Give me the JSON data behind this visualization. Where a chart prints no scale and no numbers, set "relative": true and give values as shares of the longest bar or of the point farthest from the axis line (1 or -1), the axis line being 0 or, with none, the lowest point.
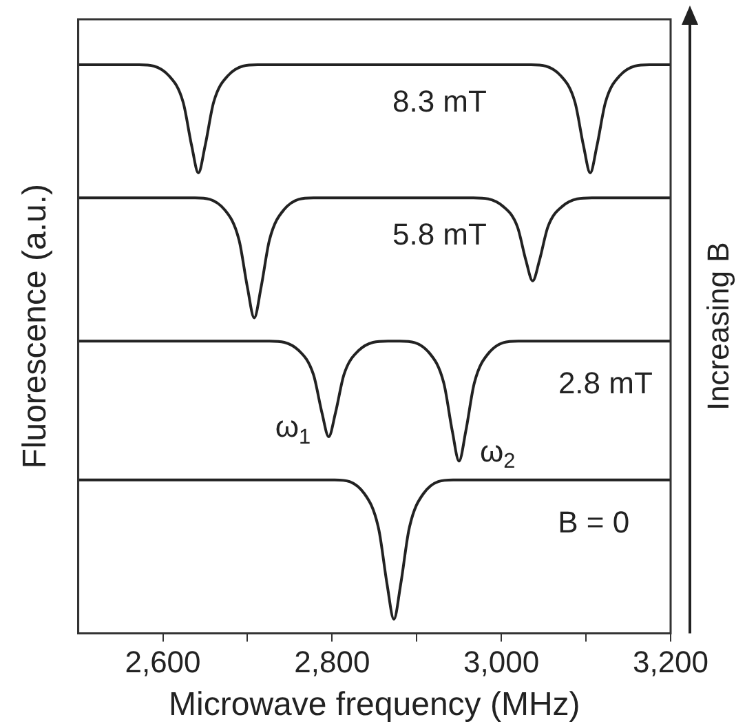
{
  "chart_data": {
    "type": "line",
    "relative": true,
    "marker": "none",
    "line_style": "solid",
    "xlabel": "Microwave frequency (MHz)",
    "ylabel": "Fluorescence (a.u.)",
    "y2label": "Increasing B",
    "xlim": [
      2500,
      3200
    ],
    "xticks": [
      {
        "value": 2600,
        "label": "2,600"
      },
      {
        "value": 2700,
        "label": null
      },
      {
        "value": 2800,
        "label": "2,800"
      },
      {
        "value": 2900,
        "label": null
      },
      {
        "value": 3000,
        "label": "3,000"
      },
      {
        "value": 3100,
        "label": null
      },
      {
        "value": 3200,
        "label": "3,200"
      }
    ],
    "series": [
      {
        "name": "8.3 mT",
        "color": "#222222",
        "x": [
          2500,
          2572,
          2607,
          2624,
          2634,
          2642,
          2650,
          2660,
          2677,
          2712,
          3035,
          3070,
          3087,
          3097,
          3105,
          3113,
          3123,
          3140,
          3175,
          3200
        ],
        "values": [
          1,
          1,
          0.981,
          0.934,
          0.858,
          0.81,
          0.858,
          0.934,
          0.981,
          1,
          1,
          0.981,
          0.934,
          0.858,
          0.81,
          0.858,
          0.934,
          0.981,
          1,
          1
        ]
      },
      {
        "name": "5.8 mT",
        "color": "#222222",
        "x": [
          2500,
          2638,
          2673,
          2690,
          2700,
          2708,
          2716,
          2726,
          2743,
          2778,
          2967,
          3002,
          3019,
          3029,
          3037,
          3045,
          3055,
          3072,
          3107,
          3200
        ],
        "values": [
          0.766,
          0.766,
          0.745,
          0.692,
          0.608,
          0.555,
          0.608,
          0.692,
          0.745,
          0.766,
          0.766,
          0.751,
          0.715,
          0.656,
          0.62,
          0.656,
          0.715,
          0.751,
          0.766,
          0.766
        ]
      },
      {
        "name": "2.8 mT",
        "color": "#222222",
        "x": [
          2500,
          2726,
          2761,
          2778,
          2788,
          2796,
          2804,
          2814,
          2831,
          2866,
          2880,
          2915,
          2932,
          2942,
          2950,
          2958,
          2968,
          2985,
          3020,
          3200
        ],
        "values": [
          0.514,
          0.514,
          0.497,
          0.455,
          0.388,
          0.346,
          0.388,
          0.455,
          0.497,
          0.514,
          0.514,
          0.493,
          0.44,
          0.356,
          0.303,
          0.356,
          0.44,
          0.493,
          0.514,
          0.514
        ]
      },
      {
        "name": "B = 0",
        "color": "#222222",
        "x": [
          2500,
          2803,
          2838,
          2855,
          2865,
          2873,
          2881,
          2891,
          2908,
          2943,
          3200
        ],
        "values": [
          0.27,
          0.27,
          0.246,
          0.184,
          0.086,
          0.025,
          0.086,
          0.184,
          0.246,
          0.27,
          0.27
        ]
      }
    ],
    "annotations": [
      {
        "text": "ω$_{1}$",
        "x": 2796,
        "y": 0.346
      },
      {
        "text": "ω$_{2}$",
        "x": 2950,
        "y": 0.303
      }
    ]
  }
}
